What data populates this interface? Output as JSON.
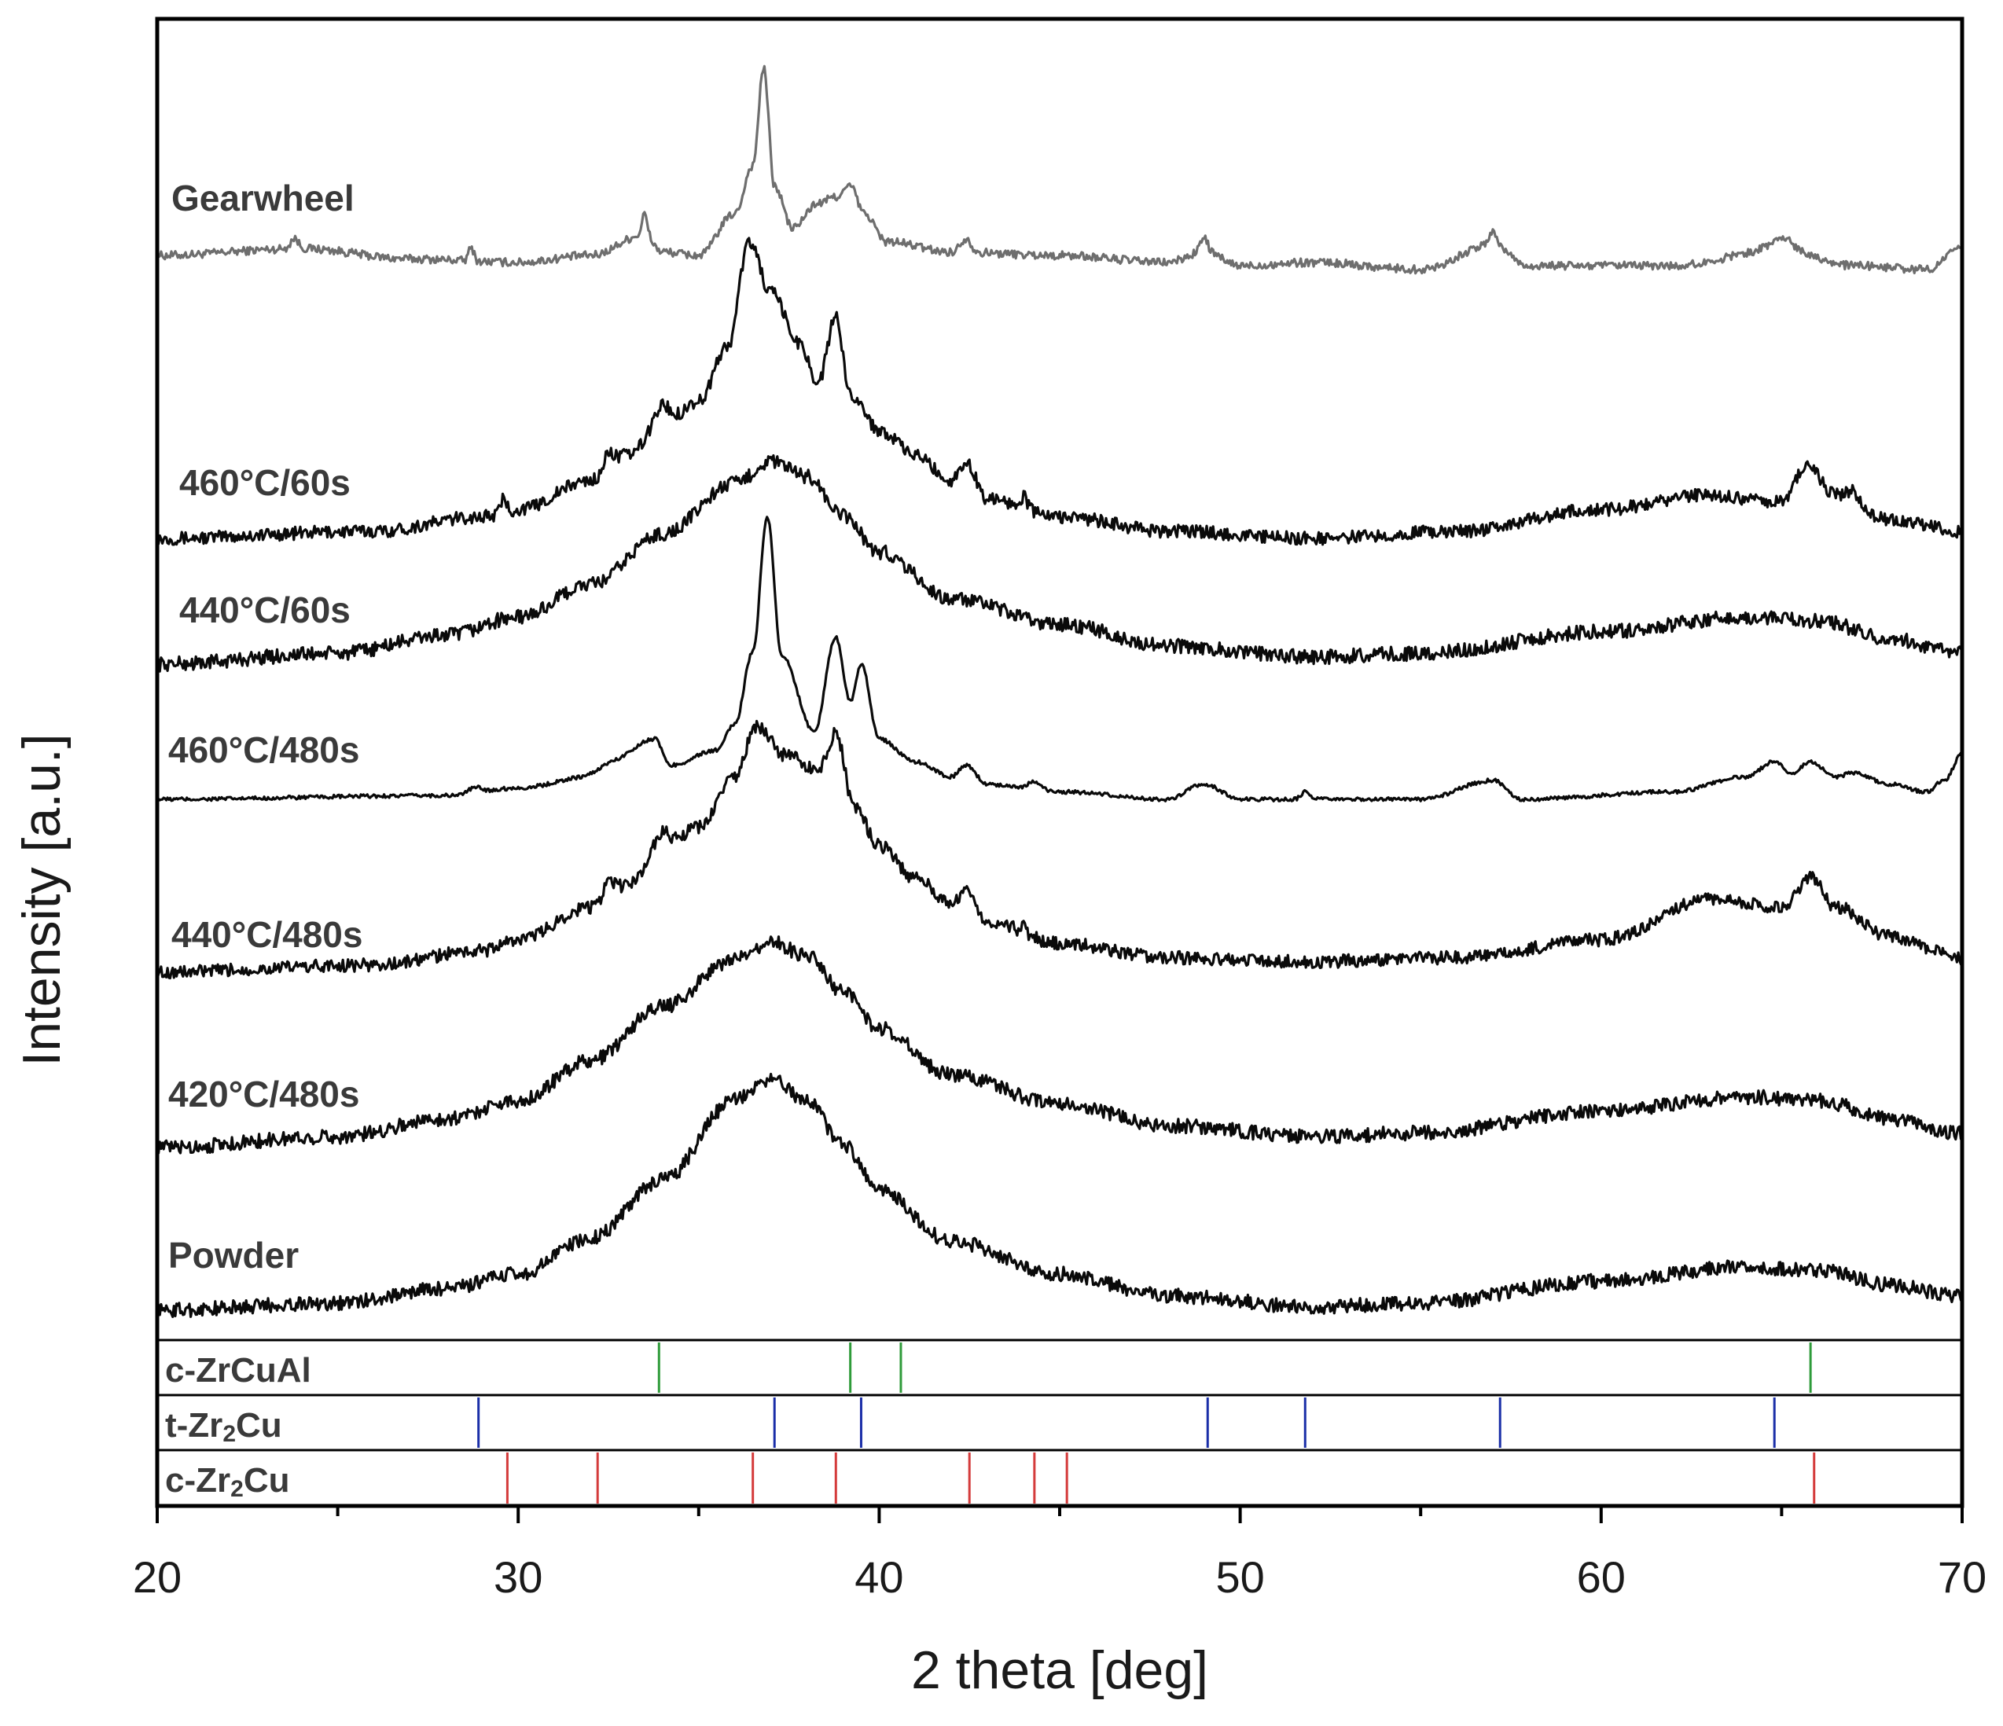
{
  "chart_data": {
    "type": "line",
    "title": "",
    "xlabel": "2 theta [deg]",
    "ylabel": "Intensity [a.u.]",
    "xlim": [
      20,
      70
    ],
    "xticks": [
      20,
      30,
      40,
      50,
      60,
      70
    ],
    "tick_labels": [
      "20",
      "30",
      "40",
      "50",
      "60",
      "70"
    ],
    "yticks": "none",
    "grid": false,
    "legend": "inline labels on left",
    "series": [
      {
        "name": "Gearwheel",
        "color": "#6e6e6e",
        "baseline": 0.5,
        "noise": 0.12,
        "points": [
          [
            20,
            0
          ],
          [
            24,
            0.2
          ],
          [
            27,
            -0.1
          ],
          [
            30,
            -0.2
          ],
          [
            32,
            0
          ],
          [
            33.5,
            0.6
          ],
          [
            34,
            0.1
          ],
          [
            35,
            0
          ],
          [
            36,
            1.2
          ],
          [
            36.5,
            2.6
          ],
          [
            36.8,
            5.4
          ],
          [
            37.1,
            2.0
          ],
          [
            37.6,
            0.8
          ],
          [
            38.3,
            1.5
          ],
          [
            38.8,
            1.7
          ],
          [
            39.2,
            2.0
          ],
          [
            39.6,
            1.2
          ],
          [
            40.2,
            0.4
          ],
          [
            42,
            0.1
          ],
          [
            45,
            0.0
          ],
          [
            48,
            -0.2
          ],
          [
            49,
            0.1
          ],
          [
            50,
            -0.3
          ],
          [
            52,
            -0.2
          ],
          [
            55,
            -0.4
          ],
          [
            57,
            0.3
          ],
          [
            58,
            -0.3
          ],
          [
            62,
            -0.3
          ],
          [
            65,
            0.2
          ],
          [
            67,
            -0.3
          ],
          [
            69,
            -0.4
          ],
          [
            70,
            0.2
          ]
        ],
        "peaks": [
          [
            23.8,
            0.15,
            0.3
          ],
          [
            28.7,
            0.1,
            0.4
          ],
          [
            33.5,
            0.1,
            0.6
          ],
          [
            42.4,
            0.2,
            0.4
          ],
          [
            49,
            0.15,
            0.4
          ],
          [
            57,
            0.15,
            0.4
          ],
          [
            65,
            0.4,
            0.3
          ]
        ]
      },
      {
        "name": "460°C/60s",
        "color": "#0a0a0a",
        "baseline": 0.45,
        "noise": 0.18,
        "points": [
          [
            20,
            0
          ],
          [
            26,
            0.2
          ],
          [
            29,
            0.6
          ],
          [
            30,
            0.8
          ],
          [
            32,
            1.6
          ],
          [
            33,
            2.3
          ],
          [
            34,
            3.1
          ],
          [
            35,
            3.8
          ],
          [
            35.8,
            5.3
          ],
          [
            36.4,
            8.2
          ],
          [
            37,
            6.8
          ],
          [
            37.8,
            5.4
          ],
          [
            38.3,
            4.3
          ],
          [
            38.8,
            6.1
          ],
          [
            39.2,
            4.0
          ],
          [
            40,
            3.0
          ],
          [
            41,
            2.3
          ],
          [
            42,
            1.6
          ],
          [
            42.4,
            2.1
          ],
          [
            43,
            1.1
          ],
          [
            45,
            0.6
          ],
          [
            48,
            0.2
          ],
          [
            52,
            0.0
          ],
          [
            56,
            0.2
          ],
          [
            60,
            0.8
          ],
          [
            63,
            1.2
          ],
          [
            65,
            1.0
          ],
          [
            65.7,
            2.0
          ],
          [
            66.5,
            1.2
          ],
          [
            68,
            0.5
          ],
          [
            70,
            0.2
          ]
        ],
        "peaks": [
          [
            29.6,
            0.1,
            0.4
          ],
          [
            32.5,
            0.2,
            0.4
          ],
          [
            34,
            0.3,
            0.6
          ],
          [
            44,
            0.15,
            0.3
          ],
          [
            67,
            0.2,
            0.3
          ]
        ]
      },
      {
        "name": "440°C/60s",
        "color": "#0a0a0a",
        "baseline": 0.45,
        "noise": 0.2,
        "points": [
          [
            20,
            0
          ],
          [
            25,
            0.3
          ],
          [
            28,
            0.8
          ],
          [
            30,
            1.3
          ],
          [
            32,
            2.2
          ],
          [
            34,
            3.6
          ],
          [
            36,
            5.0
          ],
          [
            37,
            5.6
          ],
          [
            38,
            5.2
          ],
          [
            39,
            4.1
          ],
          [
            40,
            3.1
          ],
          [
            42,
            1.8
          ],
          [
            45,
            1.1
          ],
          [
            48,
            0.5
          ],
          [
            52,
            0.2
          ],
          [
            55,
            0.3
          ],
          [
            60,
            0.9
          ],
          [
            64,
            1.3
          ],
          [
            66,
            1.2
          ],
          [
            68,
            0.7
          ],
          [
            70,
            0.3
          ]
        ],
        "peaks": []
      },
      {
        "name": "460°C/480s",
        "color": "#0a0a0a",
        "baseline": 0.45,
        "noise": 0.05,
        "points": [
          [
            20,
            0
          ],
          [
            28,
            0.1
          ],
          [
            30,
            0.3
          ],
          [
            32,
            0.6
          ],
          [
            33.8,
            1.6
          ],
          [
            34.2,
            0.9
          ],
          [
            35.5,
            1.3
          ],
          [
            36,
            2.0
          ],
          [
            36.5,
            3.9
          ],
          [
            36.9,
            7.5
          ],
          [
            37.3,
            3.8
          ],
          [
            38.2,
            1.8
          ],
          [
            38.8,
            4.3
          ],
          [
            39.2,
            2.6
          ],
          [
            39.5,
            3.6
          ],
          [
            40,
            1.6
          ],
          [
            41,
            1.0
          ],
          [
            42,
            0.6
          ],
          [
            42.4,
            0.9
          ],
          [
            43,
            0.4
          ],
          [
            45,
            0.2
          ],
          [
            48,
            0.0
          ],
          [
            49,
            0.4
          ],
          [
            50,
            0.0
          ],
          [
            55,
            0.0
          ],
          [
            57,
            0.5
          ],
          [
            57.8,
            0.0
          ],
          [
            62,
            0.2
          ],
          [
            64,
            0.6
          ],
          [
            64.8,
            1.0
          ],
          [
            65.3,
            0.7
          ],
          [
            65.8,
            1.0
          ],
          [
            66.5,
            0.6
          ],
          [
            67,
            0.7
          ],
          [
            68,
            0.4
          ],
          [
            69,
            0.2
          ],
          [
            69.5,
            0.5
          ],
          [
            70,
            1.2
          ]
        ],
        "peaks": [
          [
            28.8,
            0.25,
            0.15
          ],
          [
            32.4,
            0.4,
            0.2
          ],
          [
            44.3,
            0.25,
            0.2
          ],
          [
            51.8,
            0.15,
            0.2
          ]
        ]
      },
      {
        "name": "440°C/480s",
        "color": "#0a0a0a",
        "baseline": 0.45,
        "noise": 0.18,
        "points": [
          [
            20,
            0
          ],
          [
            26,
            0.2
          ],
          [
            29,
            0.6
          ],
          [
            30,
            0.9
          ],
          [
            32,
            1.8
          ],
          [
            33,
            2.4
          ],
          [
            34,
            3.4
          ],
          [
            35,
            4.0
          ],
          [
            36,
            5.4
          ],
          [
            36.6,
            6.8
          ],
          [
            37.4,
            6.0
          ],
          [
            38.3,
            5.6
          ],
          [
            38.8,
            6.6
          ],
          [
            39.3,
            4.6
          ],
          [
            40,
            3.5
          ],
          [
            41,
            2.6
          ],
          [
            42,
            1.9
          ],
          [
            42.4,
            2.3
          ],
          [
            43,
            1.4
          ],
          [
            45,
            0.8
          ],
          [
            48,
            0.4
          ],
          [
            52,
            0.3
          ],
          [
            56,
            0.4
          ],
          [
            60,
            0.9
          ],
          [
            63,
            2.0
          ],
          [
            65,
            1.8
          ],
          [
            65.8,
            2.6
          ],
          [
            66.5,
            1.8
          ],
          [
            68,
            1.0
          ],
          [
            70,
            0.4
          ]
        ],
        "peaks": [
          [
            32.5,
            0.2,
            0.4
          ],
          [
            34,
            0.3,
            0.5
          ],
          [
            44,
            0.1,
            0.3
          ]
        ]
      },
      {
        "name": "420°C/480s",
        "color": "#0a0a0a",
        "baseline": 0.45,
        "noise": 0.2,
        "points": [
          [
            20,
            0
          ],
          [
            25,
            0.3
          ],
          [
            28,
            0.8
          ],
          [
            30,
            1.3
          ],
          [
            32,
            2.4
          ],
          [
            34,
            3.9
          ],
          [
            36,
            5.2
          ],
          [
            37,
            5.7
          ],
          [
            38,
            5.3
          ],
          [
            39,
            4.3
          ],
          [
            40,
            3.3
          ],
          [
            42,
            2.0
          ],
          [
            45,
            1.2
          ],
          [
            48,
            0.6
          ],
          [
            52,
            0.3
          ],
          [
            55,
            0.4
          ],
          [
            60,
            1.0
          ],
          [
            64,
            1.4
          ],
          [
            66,
            1.3
          ],
          [
            68,
            0.8
          ],
          [
            70,
            0.4
          ]
        ],
        "peaks": []
      },
      {
        "name": "Powder",
        "color": "#0a0a0a",
        "baseline": 0.45,
        "noise": 0.2,
        "points": [
          [
            20,
            0
          ],
          [
            25,
            0.2
          ],
          [
            28,
            0.6
          ],
          [
            30,
            1.0
          ],
          [
            32,
            2.0
          ],
          [
            34,
            3.6
          ],
          [
            36,
            5.8
          ],
          [
            37,
            6.4
          ],
          [
            38,
            5.8
          ],
          [
            39,
            4.6
          ],
          [
            40,
            3.3
          ],
          [
            42,
            1.9
          ],
          [
            45,
            1.0
          ],
          [
            48,
            0.4
          ],
          [
            52,
            0.1
          ],
          [
            55,
            0.2
          ],
          [
            60,
            0.8
          ],
          [
            64,
            1.2
          ],
          [
            66,
            1.1
          ],
          [
            68,
            0.7
          ],
          [
            70,
            0.4
          ]
        ],
        "peaks": []
      }
    ],
    "reference_phases": [
      {
        "name": "c-ZrCuAl",
        "color": "#2f9b3a",
        "positions": [
          33.9,
          39.2,
          40.6,
          65.8
        ]
      },
      {
        "name": "t-Zr2Cu",
        "color": "#1a2ea8",
        "positions": [
          28.9,
          37.1,
          39.5,
          49.1,
          51.8,
          57.2,
          64.8
        ]
      },
      {
        "name": "c-Zr2Cu",
        "color": "#d43b3b",
        "positions": [
          29.7,
          32.2,
          36.5,
          38.8,
          42.5,
          44.3,
          45.2,
          65.9
        ]
      }
    ]
  }
}
